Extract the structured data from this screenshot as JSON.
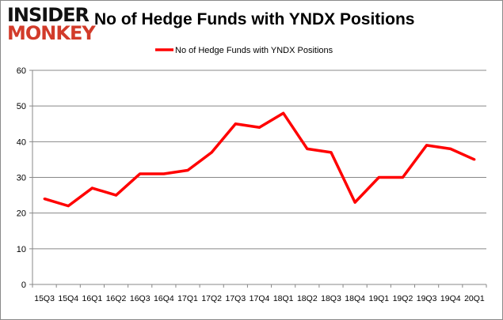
{
  "logo": {
    "line1": "INSIDER",
    "line2": "MONKEY"
  },
  "chart_data": {
    "type": "line",
    "title": "No of Hedge Funds with YNDX Positions",
    "xlabel": "",
    "ylabel": "",
    "categories": [
      "15Q3",
      "15Q4",
      "16Q1",
      "16Q2",
      "16Q3",
      "16Q4",
      "17Q1",
      "17Q2",
      "17Q3",
      "17Q4",
      "18Q1",
      "18Q2",
      "18Q3",
      "18Q4",
      "19Q1",
      "19Q2",
      "19Q3",
      "19Q4",
      "20Q1"
    ],
    "series": [
      {
        "name": "No of Hedge Funds with YNDX Positions",
        "color": "#ff0000",
        "values": [
          24,
          22,
          27,
          25,
          31,
          31,
          32,
          37,
          45,
          44,
          48,
          38,
          37,
          23,
          30,
          30,
          39,
          38,
          35
        ]
      }
    ],
    "ylim": [
      0,
      60
    ],
    "yticks": [
      0,
      10,
      20,
      30,
      40,
      50,
      60
    ],
    "grid": true,
    "legend": "top"
  }
}
